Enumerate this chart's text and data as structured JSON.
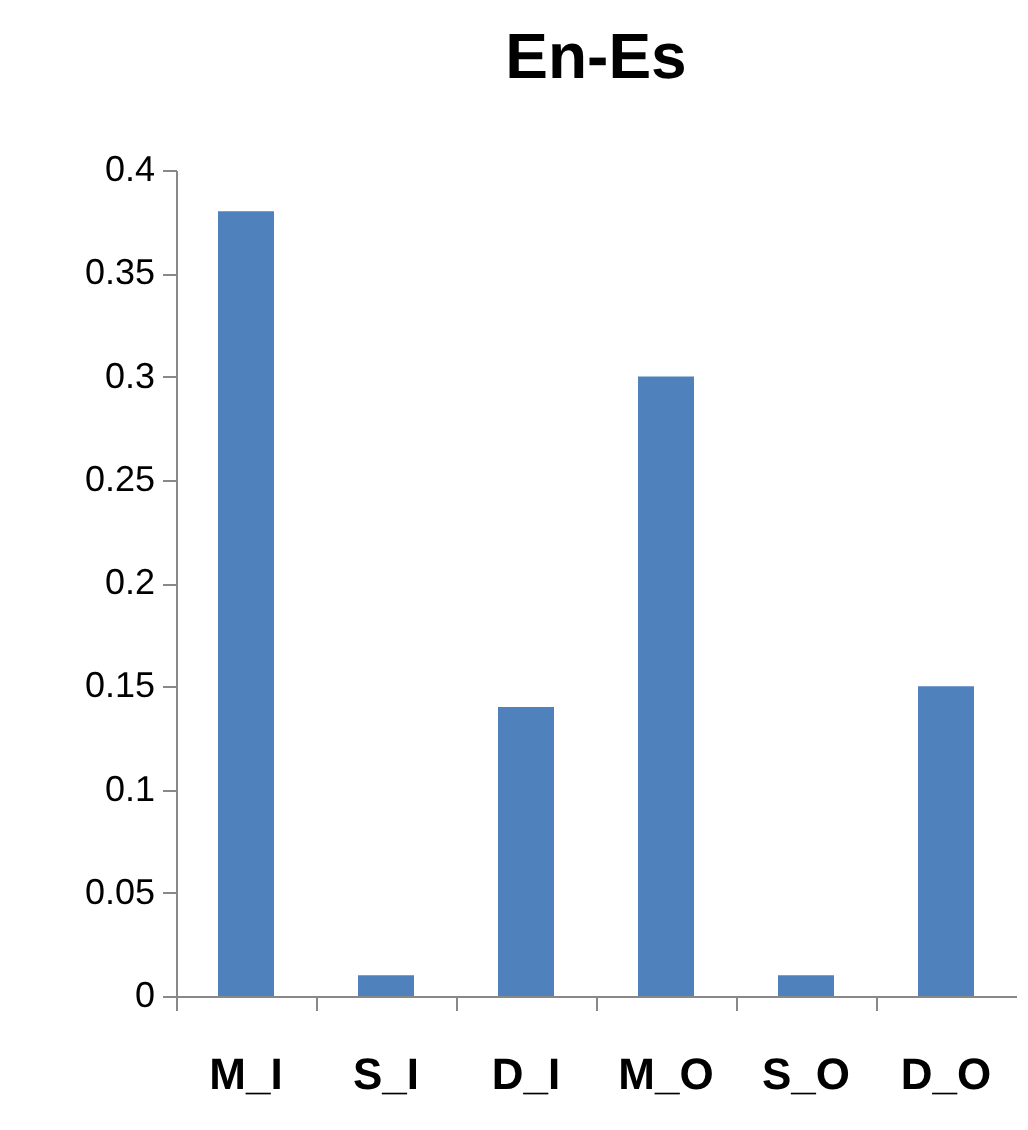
{
  "chart_data": {
    "type": "bar",
    "title": "En-Es",
    "categories": [
      "M_I",
      "S_I",
      "D_I",
      "M_O",
      "S_O",
      "D_O"
    ],
    "values": [
      0.38,
      0.01,
      0.14,
      0.3,
      0.01,
      0.15
    ],
    "color": "#4f81bd",
    "ylim": [
      0,
      0.4
    ],
    "yticks": [
      0,
      0.05,
      0.1,
      0.15,
      0.2,
      0.25,
      0.3,
      0.35,
      0.4
    ],
    "grid": false
  }
}
